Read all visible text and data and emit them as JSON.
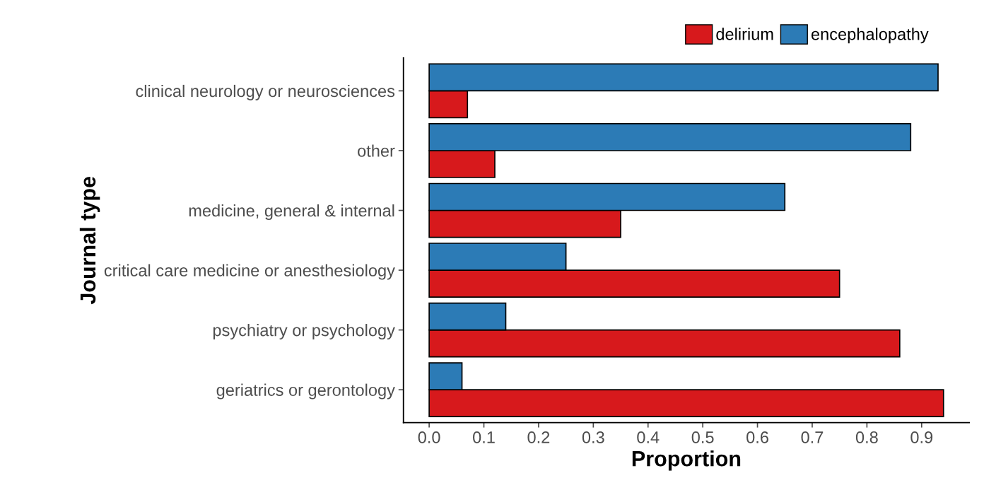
{
  "chart_data": {
    "type": "bar",
    "orientation": "horizontal",
    "xlabel": "Proportion",
    "ylabel": "Journal type",
    "categories": [
      "clinical neurology or neurosciences",
      "other",
      "medicine, general & internal",
      "critical care medicine or anesthesiology",
      "psychiatry or psychology",
      "geriatrics or gerontology"
    ],
    "series": [
      {
        "name": "delirium",
        "color": "#d7191c",
        "values": [
          0.07,
          0.12,
          0.35,
          0.75,
          0.86,
          0.94
        ]
      },
      {
        "name": "encephalopathy",
        "color": "#2c7bb6",
        "values": [
          0.93,
          0.88,
          0.65,
          0.25,
          0.14,
          0.06
        ]
      }
    ],
    "xlim": [
      -0.047,
      0.987
    ],
    "xticks": [
      {
        "value": 0,
        "label": "0.0"
      },
      0.1,
      0.2,
      0.3,
      0.4,
      0.5,
      0.6,
      0.7,
      0.8,
      0.9
    ],
    "grid": false,
    "legend": "top right"
  }
}
